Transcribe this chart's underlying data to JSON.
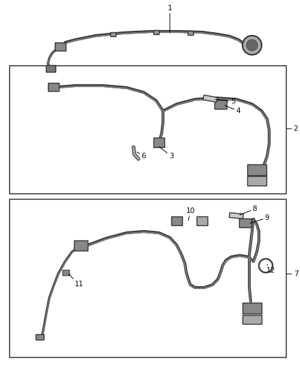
{
  "bg_color": "#ffffff",
  "figsize": [
    4.38,
    5.33
  ],
  "dpi": 100,
  "line_dark": "#3a3a3a",
  "line_mid": "#777777",
  "line_light": "#aaaaaa",
  "box_edge": "#444444",
  "box_face": "#ffffff",
  "label_fs": 7.5
}
